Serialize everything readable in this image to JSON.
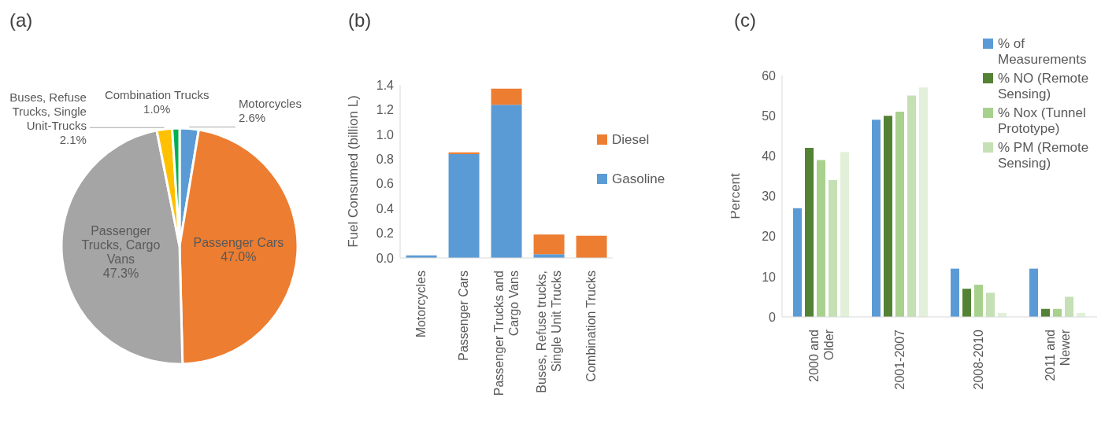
{
  "chart_data": [
    {
      "type": "pie",
      "title": "(a)",
      "categories": [
        "Motorcycles",
        "Passenger Cars",
        "Passenger Trucks, Cargo Vans",
        "Buses, Refuse Trucks, Single Unit-Trucks",
        "Combination Trucks"
      ],
      "values": [
        2.6,
        47.0,
        47.3,
        2.1,
        1.0
      ],
      "colors": [
        "#5b9bd5",
        "#ed7d31",
        "#a5a5a5",
        "#ffc000",
        "#00b050"
      ],
      "value_labels": [
        "2.6%",
        "47.0%",
        "47.3%",
        "2.1%",
        "1.0%"
      ]
    },
    {
      "type": "bar",
      "title": "(b)",
      "ylabel": "Fuel Consumed (billion L)",
      "categories": [
        "Motorcycles",
        "Passenger Cars",
        "Passenger Trucks and Cargo Vans",
        "Buses, Refuse trucks, Single Unit Trucks",
        "Combination Trucks"
      ],
      "stacked": true,
      "series": [
        {
          "name": "Gasoline",
          "color": "#5b9bd5",
          "values": [
            0.02,
            0.84,
            1.24,
            0.03,
            0
          ]
        },
        {
          "name": "Diesel",
          "color": "#ed7d31",
          "values": [
            0,
            0.015,
            0.13,
            0.16,
            0.18
          ]
        }
      ],
      "ylim": [
        0,
        1.4
      ],
      "yticks": [
        {
          "value": 0,
          "label": "0.0"
        },
        0.2,
        0.4,
        0.6,
        0.8,
        {
          "value": 1,
          "label": "1.0"
        },
        1.2,
        1.4
      ],
      "legend": "right"
    },
    {
      "type": "bar",
      "title": "(c)",
      "ylabel": "Percent",
      "categories": [
        "2000 and Older",
        "2001-2007",
        "2008-2010",
        "2011 and Newer"
      ],
      "series": [
        {
          "name": "% of Measurements",
          "color": "#5b9bd5",
          "values": [
            27,
            49,
            12,
            12
          ]
        },
        {
          "name": "% NO  (Remote Sensing)",
          "color": "#548235",
          "values": [
            42,
            50,
            7,
            2
          ]
        },
        {
          "name": "% Nox  (Tunnel Prototype)",
          "color": "#a9d18e",
          "values": [
            39,
            51,
            8,
            2
          ]
        },
        {
          "name": "% PM (Remote Sensing)",
          "color": "#c5e0b4",
          "values": [
            34,
            55,
            6,
            5
          ]
        },
        {
          "color": "#e2f0d9",
          "values": [
            41,
            57,
            1,
            1
          ]
        }
      ],
      "ylim": [
        0,
        60
      ],
      "yticks": [
        0,
        10,
        20,
        30,
        40,
        50,
        60
      ],
      "legend": "top right"
    }
  ]
}
